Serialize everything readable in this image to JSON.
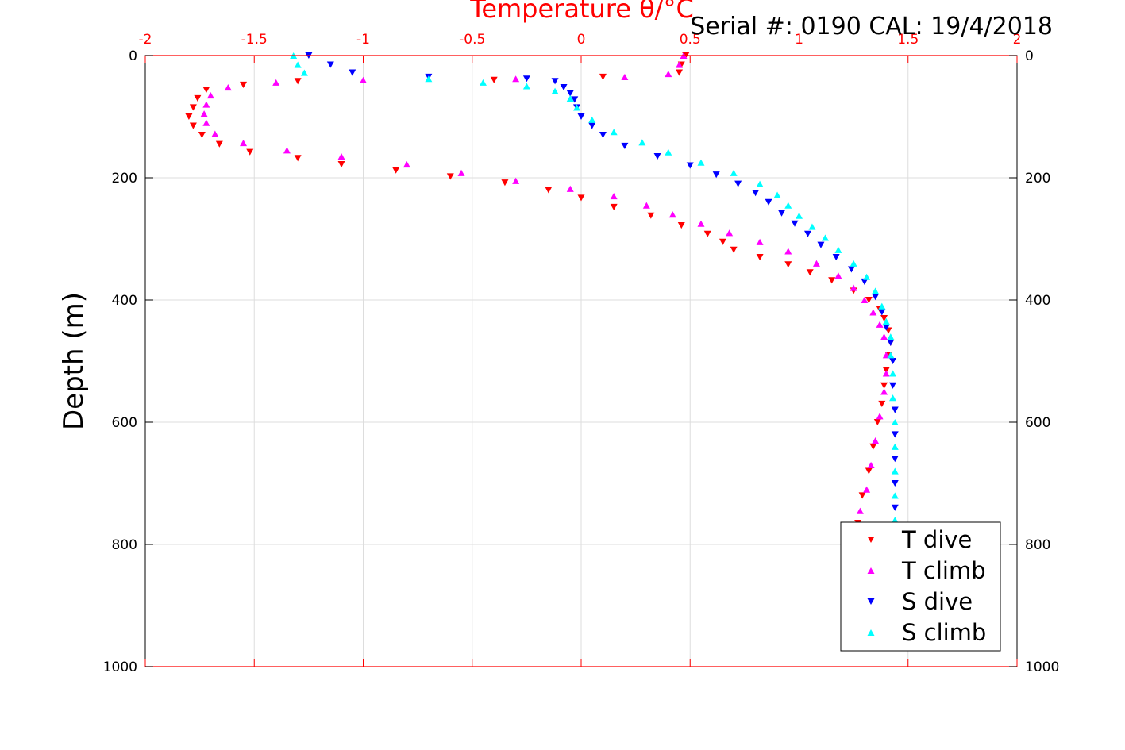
{
  "chart_data": {
    "type": "scatter",
    "title": "",
    "xlabel": "Temperature θ/°C",
    "ylabel": "Depth (m)",
    "annotation": "Serial #: 0190  CAL: 19/4/2018",
    "xlim": [
      -2,
      2
    ],
    "ylim": [
      0,
      1000
    ],
    "y_reversed": true,
    "x_axis_position": "top",
    "x_ticks": [
      -2,
      -1.5,
      -1,
      -0.5,
      0,
      0.5,
      1,
      1.5,
      2
    ],
    "x_tick_labels": [
      "-2",
      "-1.5",
      "-1",
      "-0.5",
      "0",
      "0.5",
      "1",
      "1.5",
      "2"
    ],
    "y_ticks": [
      0,
      200,
      400,
      600,
      800,
      1000
    ],
    "y_tick_labels": [
      "0",
      "200",
      "400",
      "600",
      "800",
      "1000"
    ],
    "grid": true,
    "legend_position": "bottom-right",
    "series": [
      {
        "name": "T dive",
        "color": "#ff0000",
        "marker": "triangle-down",
        "points": [
          [
            0.48,
            0
          ],
          [
            0.46,
            15
          ],
          [
            0.45,
            28
          ],
          [
            0.1,
            35
          ],
          [
            -0.4,
            40
          ],
          [
            -1.3,
            42
          ],
          [
            -1.55,
            48
          ],
          [
            -1.72,
            56
          ],
          [
            -1.76,
            70
          ],
          [
            -1.78,
            85
          ],
          [
            -1.8,
            100
          ],
          [
            -1.78,
            115
          ],
          [
            -1.74,
            130
          ],
          [
            -1.66,
            145
          ],
          [
            -1.52,
            158
          ],
          [
            -1.3,
            168
          ],
          [
            -1.1,
            178
          ],
          [
            -0.85,
            188
          ],
          [
            -0.6,
            198
          ],
          [
            -0.35,
            208
          ],
          [
            -0.15,
            220
          ],
          [
            0.0,
            233
          ],
          [
            0.15,
            248
          ],
          [
            0.32,
            262
          ],
          [
            0.46,
            278
          ],
          [
            0.58,
            292
          ],
          [
            0.65,
            305
          ],
          [
            0.7,
            318
          ],
          [
            0.82,
            330
          ],
          [
            0.95,
            342
          ],
          [
            1.05,
            355
          ],
          [
            1.15,
            368
          ],
          [
            1.25,
            385
          ],
          [
            1.32,
            400
          ],
          [
            1.37,
            415
          ],
          [
            1.39,
            430
          ],
          [
            1.41,
            450
          ],
          [
            1.42,
            470
          ],
          [
            1.41,
            490
          ],
          [
            1.4,
            515
          ],
          [
            1.39,
            540
          ],
          [
            1.38,
            570
          ],
          [
            1.36,
            600
          ],
          [
            1.34,
            640
          ],
          [
            1.32,
            680
          ],
          [
            1.29,
            720
          ],
          [
            1.27,
            765
          ]
        ]
      },
      {
        "name": "T climb",
        "color": "#ff00ff",
        "marker": "triangle-up",
        "points": [
          [
            0.47,
            0
          ],
          [
            0.45,
            15
          ],
          [
            0.4,
            30
          ],
          [
            0.2,
            35
          ],
          [
            -0.3,
            38
          ],
          [
            -1.0,
            40
          ],
          [
            -1.4,
            44
          ],
          [
            -1.62,
            52
          ],
          [
            -1.7,
            65
          ],
          [
            -1.72,
            80
          ],
          [
            -1.73,
            95
          ],
          [
            -1.72,
            110
          ],
          [
            -1.68,
            128
          ],
          [
            -1.55,
            143
          ],
          [
            -1.35,
            155
          ],
          [
            -1.1,
            165
          ],
          [
            -0.8,
            178
          ],
          [
            -0.55,
            192
          ],
          [
            -0.3,
            205
          ],
          [
            -0.05,
            218
          ],
          [
            0.15,
            230
          ],
          [
            0.3,
            245
          ],
          [
            0.42,
            260
          ],
          [
            0.55,
            275
          ],
          [
            0.68,
            290
          ],
          [
            0.82,
            305
          ],
          [
            0.95,
            320
          ],
          [
            1.08,
            340
          ],
          [
            1.18,
            360
          ],
          [
            1.25,
            380
          ],
          [
            1.3,
            400
          ],
          [
            1.34,
            420
          ],
          [
            1.37,
            440
          ],
          [
            1.39,
            460
          ],
          [
            1.4,
            490
          ],
          [
            1.4,
            520
          ],
          [
            1.39,
            550
          ],
          [
            1.37,
            590
          ],
          [
            1.35,
            630
          ],
          [
            1.33,
            670
          ],
          [
            1.31,
            710
          ],
          [
            1.28,
            745
          ],
          [
            1.26,
            770
          ]
        ]
      },
      {
        "name": "S dive",
        "color": "#0000ff",
        "marker": "triangle-down",
        "points": [
          [
            -1.25,
            0
          ],
          [
            -1.15,
            15
          ],
          [
            -1.05,
            28
          ],
          [
            -0.7,
            35
          ],
          [
            -0.25,
            38
          ],
          [
            -0.12,
            42
          ],
          [
            -0.08,
            52
          ],
          [
            -0.05,
            62
          ],
          [
            -0.03,
            72
          ],
          [
            -0.02,
            85
          ],
          [
            0.0,
            100
          ],
          [
            0.05,
            115
          ],
          [
            0.1,
            130
          ],
          [
            0.2,
            148
          ],
          [
            0.35,
            165
          ],
          [
            0.5,
            180
          ],
          [
            0.62,
            195
          ],
          [
            0.72,
            210
          ],
          [
            0.8,
            225
          ],
          [
            0.86,
            240
          ],
          [
            0.92,
            258
          ],
          [
            0.98,
            275
          ],
          [
            1.04,
            292
          ],
          [
            1.1,
            310
          ],
          [
            1.17,
            330
          ],
          [
            1.24,
            350
          ],
          [
            1.3,
            370
          ],
          [
            1.35,
            395
          ],
          [
            1.38,
            420
          ],
          [
            1.4,
            445
          ],
          [
            1.42,
            470
          ],
          [
            1.43,
            500
          ],
          [
            1.43,
            540
          ],
          [
            1.44,
            580
          ],
          [
            1.44,
            620
          ],
          [
            1.44,
            660
          ],
          [
            1.44,
            700
          ],
          [
            1.44,
            740
          ],
          [
            1.44,
            770
          ]
        ]
      },
      {
        "name": "S climb",
        "color": "#00ffff",
        "marker": "triangle-up",
        "points": [
          [
            -1.32,
            0
          ],
          [
            -1.3,
            15
          ],
          [
            -1.27,
            28
          ],
          [
            -0.7,
            38
          ],
          [
            -0.45,
            44
          ],
          [
            -0.25,
            50
          ],
          [
            -0.12,
            58
          ],
          [
            -0.05,
            70
          ],
          [
            -0.02,
            85
          ],
          [
            0.05,
            105
          ],
          [
            0.15,
            125
          ],
          [
            0.28,
            142
          ],
          [
            0.4,
            158
          ],
          [
            0.55,
            175
          ],
          [
            0.7,
            192
          ],
          [
            0.82,
            210
          ],
          [
            0.9,
            228
          ],
          [
            0.95,
            245
          ],
          [
            1.0,
            262
          ],
          [
            1.06,
            280
          ],
          [
            1.12,
            298
          ],
          [
            1.18,
            318
          ],
          [
            1.25,
            340
          ],
          [
            1.31,
            362
          ],
          [
            1.35,
            385
          ],
          [
            1.38,
            410
          ],
          [
            1.4,
            435
          ],
          [
            1.42,
            460
          ],
          [
            1.42,
            490
          ],
          [
            1.43,
            520
          ],
          [
            1.43,
            560
          ],
          [
            1.44,
            600
          ],
          [
            1.44,
            640
          ],
          [
            1.44,
            680
          ],
          [
            1.44,
            720
          ],
          [
            1.44,
            760
          ]
        ]
      }
    ]
  }
}
